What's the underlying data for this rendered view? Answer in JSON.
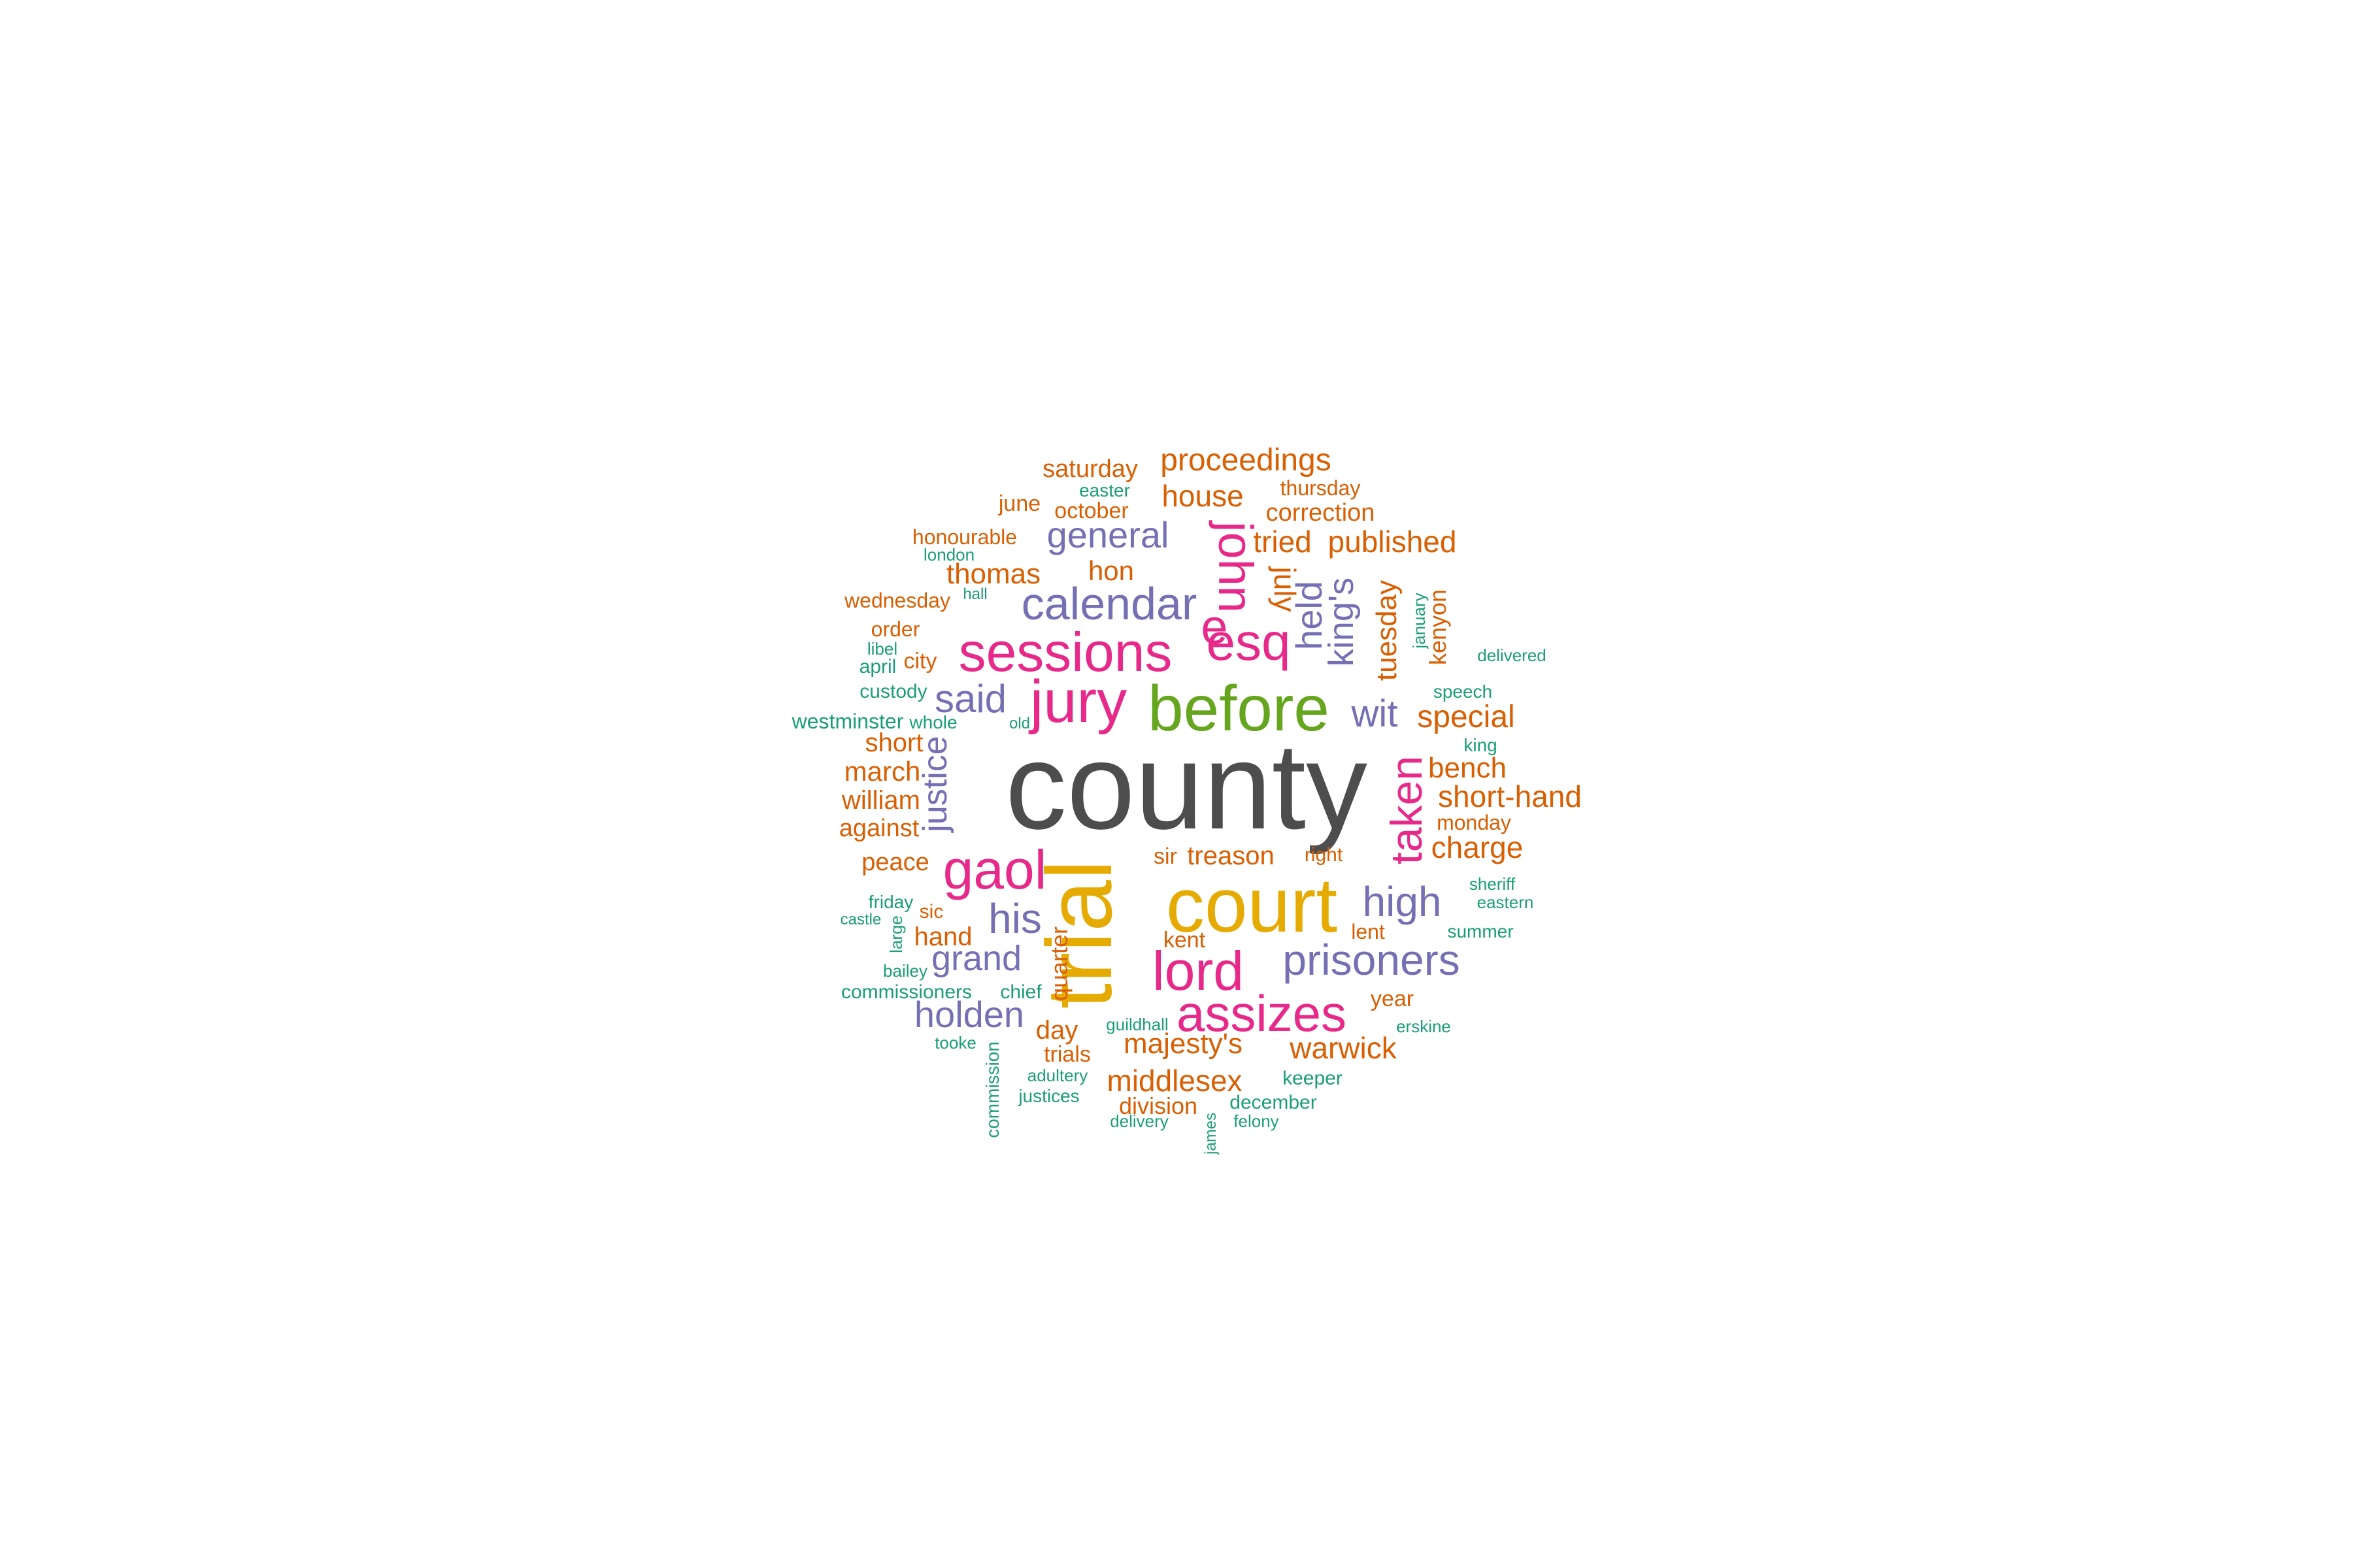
{
  "colors": {
    "gray": "#4d4d4d",
    "orange": "#d95f02",
    "green": "#1b9e77",
    "purple": "#7570b3",
    "magenta": "#e7298a",
    "leafgreen": "#66a61e",
    "gold": "#e6ab02"
  },
  "words": [
    {
      "text": "county",
      "color": "gray"
    },
    {
      "text": "trial",
      "color": "gold"
    },
    {
      "text": "court",
      "color": "gold"
    },
    {
      "text": "before",
      "color": "leafgreen"
    },
    {
      "text": "jury",
      "color": "magenta"
    },
    {
      "text": "sessions",
      "color": "magenta"
    },
    {
      "text": "gaol",
      "color": "magenta"
    },
    {
      "text": "assizes",
      "color": "magenta"
    },
    {
      "text": "lord",
      "color": "magenta"
    },
    {
      "text": "esq",
      "color": "magenta"
    },
    {
      "text": "john",
      "color": "magenta"
    },
    {
      "text": "e",
      "color": "magenta"
    },
    {
      "text": "taken",
      "color": "magenta"
    },
    {
      "text": "calendar",
      "color": "purple"
    },
    {
      "text": "prisoners",
      "color": "purple"
    },
    {
      "text": "said",
      "color": "purple"
    },
    {
      "text": "his",
      "color": "purple"
    },
    {
      "text": "high",
      "color": "purple"
    },
    {
      "text": "general",
      "color": "purple"
    },
    {
      "text": "grand",
      "color": "purple"
    },
    {
      "text": "holden",
      "color": "purple"
    },
    {
      "text": "wit",
      "color": "purple"
    },
    {
      "text": "held",
      "color": "purple"
    },
    {
      "text": "king's",
      "color": "purple"
    },
    {
      "text": "justice",
      "color": "purple"
    },
    {
      "text": "proceedings",
      "color": "orange"
    },
    {
      "text": "saturday",
      "color": "orange"
    },
    {
      "text": "house",
      "color": "orange"
    },
    {
      "text": "thursday",
      "color": "orange"
    },
    {
      "text": "june",
      "color": "orange"
    },
    {
      "text": "october",
      "color": "orange"
    },
    {
      "text": "correction",
      "color": "orange"
    },
    {
      "text": "honourable",
      "color": "orange"
    },
    {
      "text": "tried",
      "color": "orange"
    },
    {
      "text": "published",
      "color": "orange"
    },
    {
      "text": "thomas",
      "color": "orange"
    },
    {
      "text": "hon",
      "color": "orange"
    },
    {
      "text": "wednesday",
      "color": "orange"
    },
    {
      "text": "order",
      "color": "orange"
    },
    {
      "text": "city",
      "color": "orange"
    },
    {
      "text": "special",
      "color": "orange"
    },
    {
      "text": "short",
      "color": "orange"
    },
    {
      "text": "march",
      "color": "orange"
    },
    {
      "text": "william",
      "color": "orange"
    },
    {
      "text": "against",
      "color": "orange"
    },
    {
      "text": "bench",
      "color": "orange"
    },
    {
      "text": "short-hand",
      "color": "orange"
    },
    {
      "text": "monday",
      "color": "orange"
    },
    {
      "text": "charge",
      "color": "orange"
    },
    {
      "text": "peace",
      "color": "orange"
    },
    {
      "text": "sir",
      "color": "orange"
    },
    {
      "text": "treason",
      "color": "orange"
    },
    {
      "text": "right",
      "color": "orange"
    },
    {
      "text": "sic",
      "color": "orange"
    },
    {
      "text": "hand",
      "color": "orange"
    },
    {
      "text": "kent",
      "color": "orange"
    },
    {
      "text": "lent",
      "color": "orange"
    },
    {
      "text": "year",
      "color": "orange"
    },
    {
      "text": "day",
      "color": "orange"
    },
    {
      "text": "majesty's",
      "color": "orange"
    },
    {
      "text": "warwick",
      "color": "orange"
    },
    {
      "text": "trials",
      "color": "orange"
    },
    {
      "text": "middlesex",
      "color": "orange"
    },
    {
      "text": "division",
      "color": "orange"
    },
    {
      "text": "july",
      "color": "orange"
    },
    {
      "text": "tuesday",
      "color": "orange"
    },
    {
      "text": "kenyon",
      "color": "orange"
    },
    {
      "text": "quarter",
      "color": "orange"
    },
    {
      "text": "easter",
      "color": "green"
    },
    {
      "text": "london",
      "color": "green"
    },
    {
      "text": "hall",
      "color": "green"
    },
    {
      "text": "libel",
      "color": "green"
    },
    {
      "text": "april",
      "color": "green"
    },
    {
      "text": "custody",
      "color": "green"
    },
    {
      "text": "westminster",
      "color": "green"
    },
    {
      "text": "whole",
      "color": "green"
    },
    {
      "text": "old",
      "color": "green"
    },
    {
      "text": "delivered",
      "color": "green"
    },
    {
      "text": "speech",
      "color": "green"
    },
    {
      "text": "king",
      "color": "green"
    },
    {
      "text": "sheriff",
      "color": "green"
    },
    {
      "text": "eastern",
      "color": "green"
    },
    {
      "text": "summer",
      "color": "green"
    },
    {
      "text": "friday",
      "color": "green"
    },
    {
      "text": "castle",
      "color": "green"
    },
    {
      "text": "bailey",
      "color": "green"
    },
    {
      "text": "commissioners",
      "color": "green"
    },
    {
      "text": "chief",
      "color": "green"
    },
    {
      "text": "tooke",
      "color": "green"
    },
    {
      "text": "guildhall",
      "color": "green"
    },
    {
      "text": "erskine",
      "color": "green"
    },
    {
      "text": "adultery",
      "color": "green"
    },
    {
      "text": "justices",
      "color": "green"
    },
    {
      "text": "keeper",
      "color": "green"
    },
    {
      "text": "december",
      "color": "green"
    },
    {
      "text": "delivery",
      "color": "green"
    },
    {
      "text": "felony",
      "color": "green"
    },
    {
      "text": "january",
      "color": "green"
    },
    {
      "text": "large",
      "color": "green"
    },
    {
      "text": "commission",
      "color": "green"
    },
    {
      "text": "james",
      "color": "green"
    }
  ]
}
